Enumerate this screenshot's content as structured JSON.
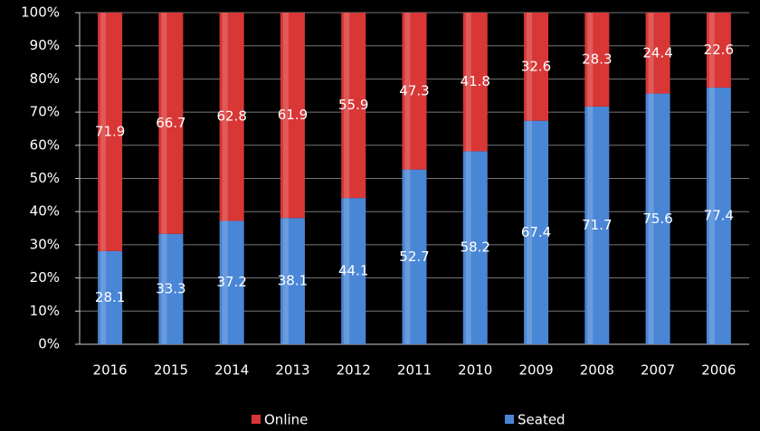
{
  "chart_data": {
    "type": "stacked_bar",
    "categories": [
      "2016",
      "2015",
      "2014",
      "2013",
      "2012",
      "2011",
      "2010",
      "2009",
      "2008",
      "2007",
      "2006"
    ],
    "series": [
      {
        "name": "Seated",
        "color": "#4a86d6",
        "values": [
          28.1,
          33.3,
          37.2,
          38.1,
          44.1,
          52.7,
          58.2,
          67.4,
          71.7,
          75.6,
          77.4
        ]
      },
      {
        "name": "Online",
        "color": "#d93636",
        "values": [
          71.9,
          66.7,
          62.8,
          61.9,
          55.9,
          47.3,
          41.8,
          32.6,
          28.3,
          24.4,
          22.6
        ]
      }
    ],
    "ylim": [
      0,
      100
    ],
    "yticks": [
      {
        "value": 0,
        "label": "0%"
      },
      {
        "value": 10,
        "label": "10%"
      },
      {
        "value": 20,
        "label": "20%"
      },
      {
        "value": 30,
        "label": "30%"
      },
      {
        "value": 40,
        "label": "40%"
      },
      {
        "value": 50,
        "label": "50%"
      },
      {
        "value": 60,
        "label": "60%"
      },
      {
        "value": 70,
        "label": "70%"
      },
      {
        "value": 80,
        "label": "80%"
      },
      {
        "value": 90,
        "label": "90%"
      },
      {
        "value": 100,
        "label": "100%"
      }
    ],
    "grid": true
  }
}
